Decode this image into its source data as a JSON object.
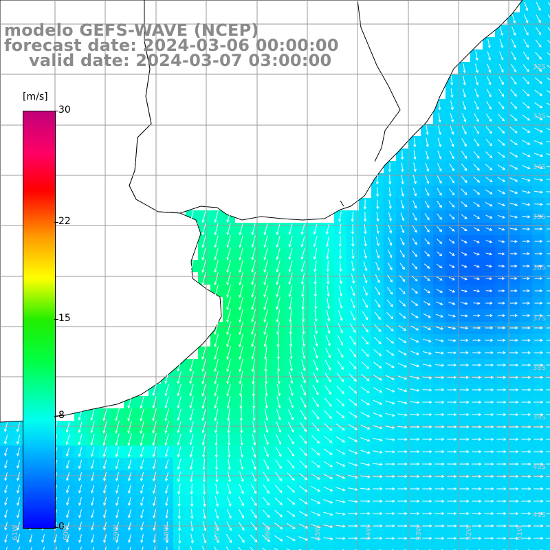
{
  "title": {
    "line1": "modelo GEFS-WAVE (NCEP)",
    "line2": "forecast date: 2024-03-06 00:00:00",
    "line3": "valid date: 2024-03-07 03:00:00"
  },
  "colorbar": {
    "unit": "[m/s]",
    "min": 0,
    "max": 30,
    "ticks": [
      {
        "label": "30",
        "value": 30
      },
      {
        "label": "22",
        "value": 22
      },
      {
        "label": "15",
        "value": 15
      },
      {
        "label": "8",
        "value": 8
      },
      {
        "label": "0",
        "value": 0
      }
    ],
    "colors": [
      "#0000ff",
      "#00c8ff",
      "#00ffee",
      "#00ff44",
      "#22ee00",
      "#ffff00",
      "#ff9900",
      "#ff0000",
      "#ff0066",
      "#c0007a"
    ]
  },
  "lat_labels": [
    "32S",
    "33S",
    "34S",
    "35S",
    "36S",
    "37S",
    "38S",
    "39S",
    "40S",
    "41S"
  ],
  "lon_labels": [
    "61W",
    "60W",
    "59W",
    "58W",
    "57W",
    "56W",
    "55W",
    "54W",
    "53W",
    "52W",
    "51W"
  ],
  "chart_data": {
    "type": "heatmap",
    "title": "modelo GEFS-WAVE (NCEP)",
    "xlabel": "",
    "ylabel": "",
    "variable_unit": "[m/s]",
    "color_range": [
      0,
      30
    ],
    "x_extent_deg": [
      -61.5,
      -50.5
    ],
    "y_extent_deg": [
      -41.5,
      -31.0
    ],
    "grid": true,
    "regions": [
      {
        "name": "",
        "wind_speed_ms": 11
      },
      {
        "name": "",
        "wind_speed_ms": 9
      },
      {
        "name": "",
        "wind_speed_ms": 3
      }
    ]
  }
}
